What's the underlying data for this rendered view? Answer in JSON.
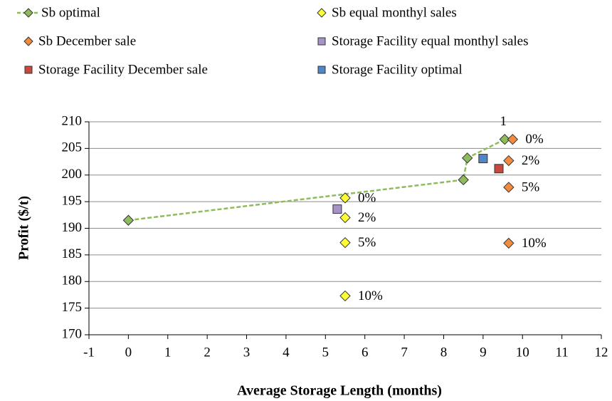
{
  "chart_data": {
    "type": "scatter",
    "x_label": "Average Storage Length (months)",
    "y_label": "Profit ($/t)",
    "xlim": [
      -1,
      12
    ],
    "xticks": [
      -1,
      0,
      1,
      2,
      3,
      4,
      5,
      6,
      7,
      8,
      9,
      10,
      11,
      12
    ],
    "ylim": [
      170,
      210
    ],
    "yticks": [
      170,
      175,
      180,
      185,
      190,
      195,
      200,
      205,
      210
    ],
    "grid": true,
    "series": [
      {
        "name": "Sb optimal",
        "color": "#8ebc5c",
        "marker": "diamond",
        "line": true,
        "x": [
          0,
          8.5,
          8.6,
          9.55
        ],
        "values": [
          191.5,
          199.1,
          203.2,
          206.7
        ],
        "point_labels": [
          null,
          null,
          null,
          "1"
        ]
      },
      {
        "name": "Sb equal monthyl sales",
        "color": "#ffff33",
        "marker": "diamond",
        "line": false,
        "x": [
          5.5,
          5.5,
          5.5,
          5.5
        ],
        "values": [
          195.7,
          192,
          187.3,
          177.3
        ],
        "point_labels": [
          "0%",
          "2%",
          "5%",
          "10%"
        ]
      },
      {
        "name": "Sb December sale",
        "color": "#f38b3f",
        "marker": "diamond",
        "line": false,
        "x": [
          9.75,
          9.65,
          9.65,
          9.65
        ],
        "values": [
          206.7,
          202.7,
          197.7,
          187.2
        ],
        "point_labels": [
          "0%",
          "2%",
          "5%",
          "10%"
        ]
      },
      {
        "name": "Storage Facility equal monthyl sales",
        "color": "#a794c6",
        "marker": "square",
        "line": false,
        "x": [
          5.3
        ],
        "values": [
          193.6
        ]
      },
      {
        "name": "Storage Facility December sale",
        "color": "#c9473d",
        "marker": "square",
        "line": false,
        "x": [
          9.4
        ],
        "values": [
          201.2
        ]
      },
      {
        "name": "Storage Facility optimal",
        "color": "#4f87c8",
        "marker": "square",
        "line": false,
        "x": [
          9
        ],
        "values": [
          203.1
        ]
      }
    ]
  }
}
